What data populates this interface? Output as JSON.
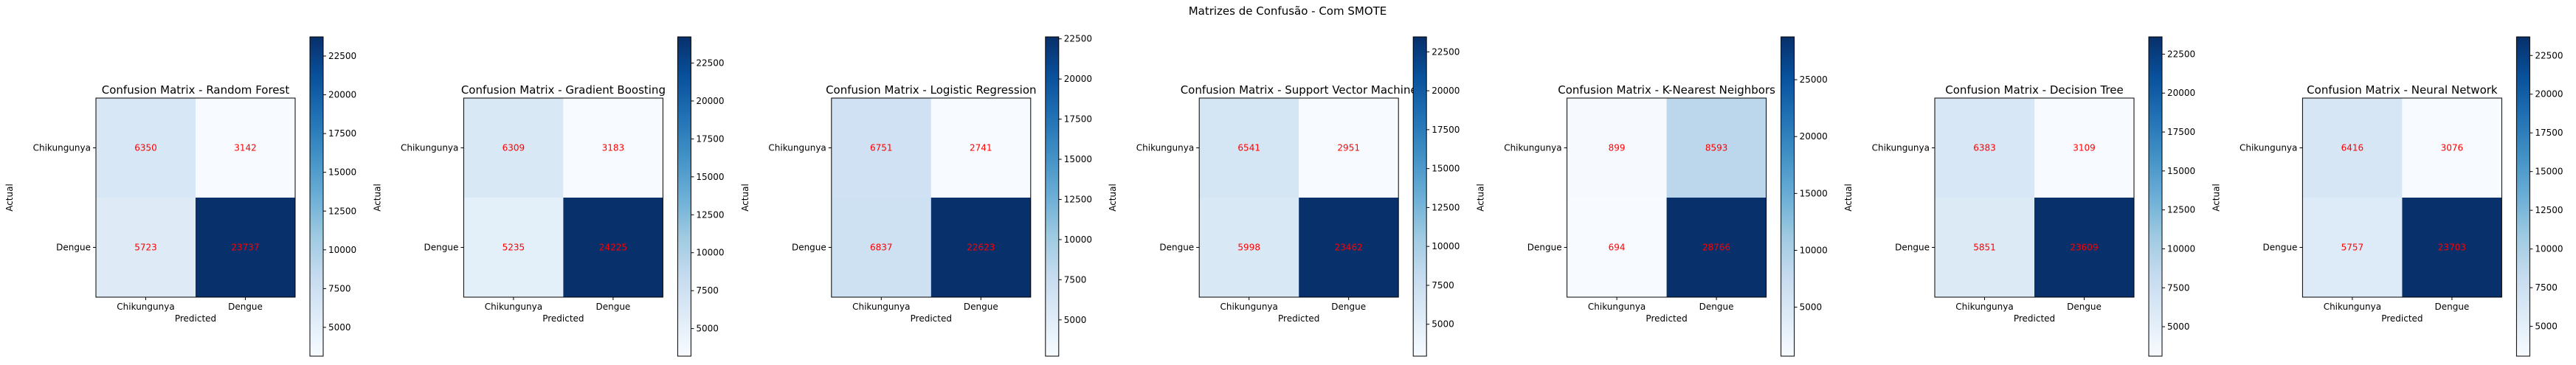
{
  "figure": {
    "suptitle": "Matrizes de Confusão - Com SMOTE",
    "colormap": [
      "#f7fbff",
      "#deebf7",
      "#c6dbef",
      "#9ecae1",
      "#6baed6",
      "#4292c6",
      "#2171b5",
      "#08519c",
      "#08306b"
    ],
    "cell_text_color": "#ff0000"
  },
  "chart_data": [
    {
      "type": "heatmap",
      "title": "Confusion Matrix - Random Forest",
      "xlabel": "Predicted",
      "ylabel": "Actual",
      "x_categories": [
        "Chikungunya",
        "Dengue"
      ],
      "y_categories": [
        "Chikungunya",
        "Dengue"
      ],
      "values": [
        [
          6350,
          3142
        ],
        [
          5723,
          23737
        ]
      ],
      "colorbar_ticks": [
        "5000",
        "7500",
        "10000",
        "12500",
        "15000",
        "17500",
        "20000",
        "22500"
      ],
      "vmin": 3142,
      "vmax": 23737
    },
    {
      "type": "heatmap",
      "title": "Confusion Matrix - Gradient Boosting",
      "xlabel": "Predicted",
      "ylabel": "Actual",
      "x_categories": [
        "Chikungunya",
        "Dengue"
      ],
      "y_categories": [
        "Chikungunya",
        "Dengue"
      ],
      "values": [
        [
          6309,
          3183
        ],
        [
          5235,
          24225
        ]
      ],
      "colorbar_ticks": [
        "5000",
        "7500",
        "10000",
        "12500",
        "15000",
        "17500",
        "20000",
        "22500"
      ],
      "vmin": 3183,
      "vmax": 24225
    },
    {
      "type": "heatmap",
      "title": "Confusion Matrix - Logistic Regression",
      "xlabel": "Predicted",
      "ylabel": "Actual",
      "x_categories": [
        "Chikungunya",
        "Dengue"
      ],
      "y_categories": [
        "Chikungunya",
        "Dengue"
      ],
      "values": [
        [
          6751,
          2741
        ],
        [
          6837,
          22623
        ]
      ],
      "colorbar_ticks": [
        "5000",
        "7500",
        "10000",
        "12500",
        "15000",
        "17500",
        "20000",
        "22500"
      ],
      "vmin": 2741,
      "vmax": 22623
    },
    {
      "type": "heatmap",
      "title": "Confusion Matrix - Support Vector Machine",
      "xlabel": "Predicted",
      "ylabel": "Actual",
      "x_categories": [
        "Chikungunya",
        "Dengue"
      ],
      "y_categories": [
        "Chikungunya",
        "Dengue"
      ],
      "values": [
        [
          6541,
          2951
        ],
        [
          5998,
          23462
        ]
      ],
      "colorbar_ticks": [
        "5000",
        "7500",
        "10000",
        "12500",
        "15000",
        "17500",
        "20000",
        "22500"
      ],
      "vmin": 2951,
      "vmax": 23462
    },
    {
      "type": "heatmap",
      "title": "Confusion Matrix - K-Nearest Neighbors",
      "xlabel": "Predicted",
      "ylabel": "Actual",
      "x_categories": [
        "Chikungunya",
        "Dengue"
      ],
      "y_categories": [
        "Chikungunya",
        "Dengue"
      ],
      "values": [
        [
          899,
          8593
        ],
        [
          694,
          28766
        ]
      ],
      "colorbar_ticks": [
        "5000",
        "10000",
        "15000",
        "20000",
        "25000"
      ],
      "vmin": 694,
      "vmax": 28766
    },
    {
      "type": "heatmap",
      "title": "Confusion Matrix - Decision Tree",
      "xlabel": "Predicted",
      "ylabel": "Actual",
      "x_categories": [
        "Chikungunya",
        "Dengue"
      ],
      "y_categories": [
        "Chikungunya",
        "Dengue"
      ],
      "values": [
        [
          6383,
          3109
        ],
        [
          5851,
          23609
        ]
      ],
      "colorbar_ticks": [
        "5000",
        "7500",
        "10000",
        "12500",
        "15000",
        "17500",
        "20000",
        "22500"
      ],
      "vmin": 3109,
      "vmax": 23609
    },
    {
      "type": "heatmap",
      "title": "Confusion Matrix - Neural Network",
      "xlabel": "Predicted",
      "ylabel": "Actual",
      "x_categories": [
        "Chikungunya",
        "Dengue"
      ],
      "y_categories": [
        "Chikungunya",
        "Dengue"
      ],
      "values": [
        [
          6416,
          3076
        ],
        [
          5757,
          23703
        ]
      ],
      "colorbar_ticks": [
        "5000",
        "7500",
        "10000",
        "12500",
        "15000",
        "17500",
        "20000",
        "22500"
      ],
      "vmin": 3076,
      "vmax": 23703
    }
  ]
}
